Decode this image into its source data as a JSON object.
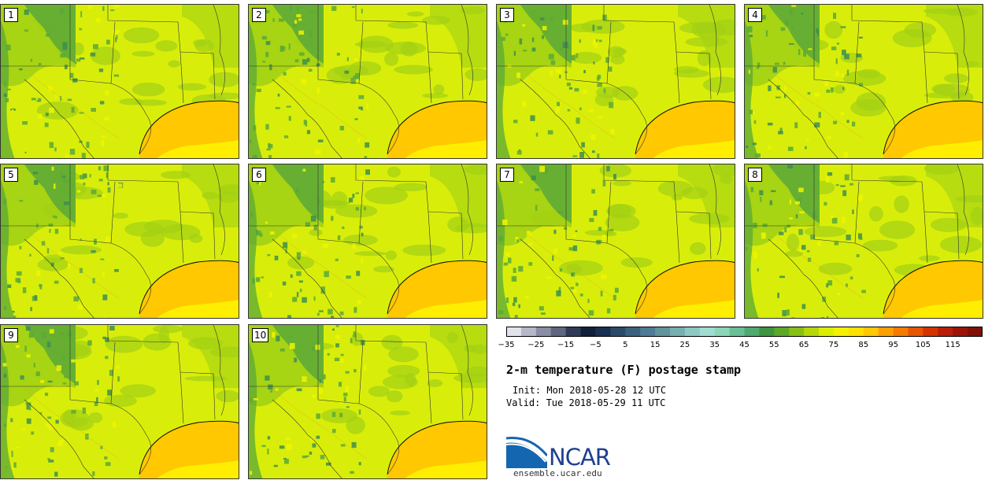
{
  "stamps": [
    {
      "label": "1"
    },
    {
      "label": "2"
    },
    {
      "label": "3"
    },
    {
      "label": "4"
    },
    {
      "label": "5"
    },
    {
      "label": "6"
    },
    {
      "label": "7"
    },
    {
      "label": "8"
    },
    {
      "label": "9"
    },
    {
      "label": "10"
    }
  ],
  "colorbar": {
    "min": -35,
    "max": 120,
    "step": 5,
    "ticks": [
      "−35",
      "−25",
      "−15",
      "−5",
      "5",
      "15",
      "25",
      "35",
      "45",
      "55",
      "65",
      "75",
      "85",
      "95",
      "105",
      "115"
    ],
    "colors": [
      "#e2e2ec",
      "#b6b8c8",
      "#8a8ea4",
      "#5e6680",
      "#2e3a58",
      "#10203a",
      "#1a3050",
      "#2a4a68",
      "#3a6280",
      "#4e7c96",
      "#62949e",
      "#78aeb0",
      "#8ec8c4",
      "#a0dcd2",
      "#8cd6b8",
      "#6ac096",
      "#50aa70",
      "#3e9440",
      "#5ea828",
      "#88c014",
      "#b6d80a",
      "#dcee00",
      "#f4f000",
      "#ffe000",
      "#ffc800",
      "#fca000",
      "#f47a00",
      "#e85400",
      "#d43400",
      "#b81e08",
      "#9c1408",
      "#801008"
    ]
  },
  "title": "2-m temperature (F) postage stamp",
  "init": "Init: Mon 2018-05-28 12 UTC",
  "valid": "Valid: Tue 2018-05-29 11 UTC",
  "logo": {
    "word": "NCAR",
    "url": "ensemble.ucar.edu"
  },
  "palette": {
    "land": "#d8ee0a",
    "highland": "#5aa838",
    "mid": "#a2d014",
    "gulf_warm": "#ffc800",
    "gulf_cool": "#ffee00",
    "border": "#333333"
  }
}
